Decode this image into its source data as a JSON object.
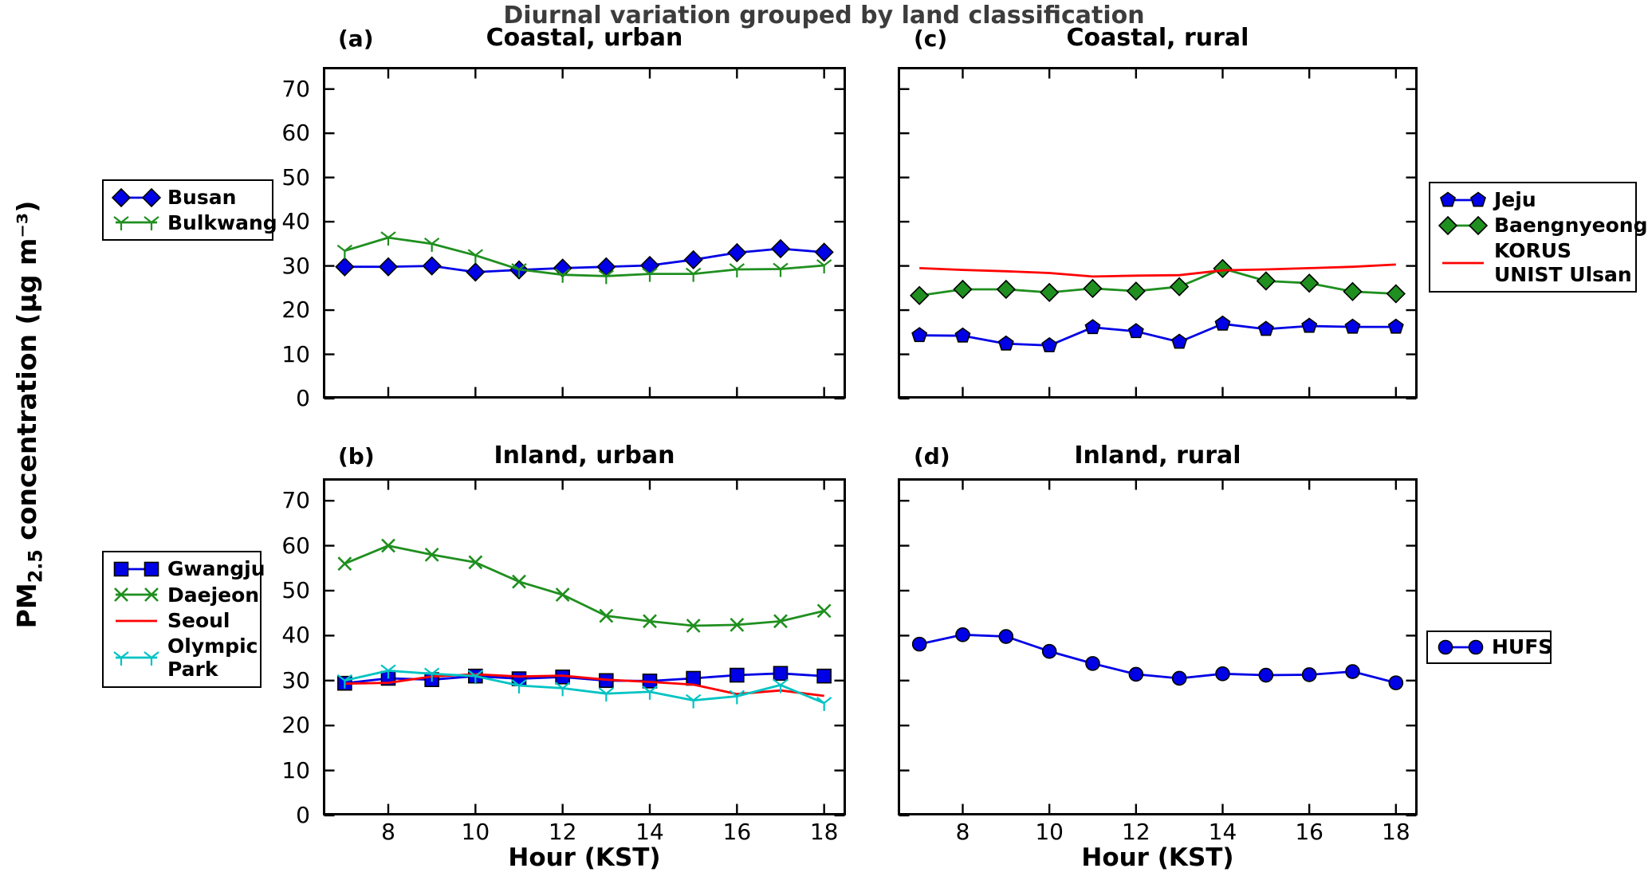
{
  "suptitle": "Diurnal variation grouped by land classification",
  "xlabel": "Hour (KST)",
  "ylabel": {
    "pm": "PM",
    "sub": "2.5",
    "rest": " concentration (µg m⁻³)"
  },
  "colors": {
    "blue": "#0000e6",
    "green": "#1f8f1f",
    "red": "#ff0000",
    "cyan": "#00c3c3",
    "frame": "#000000",
    "suptitle_text": "#3c3c3c"
  },
  "axes": {
    "xlim": [
      6.5,
      18.5
    ],
    "ylim": [
      0,
      75
    ],
    "x_ticks": [
      8,
      10,
      12,
      14,
      16,
      18
    ],
    "y_ticks": [
      0,
      10,
      20,
      30,
      40,
      50,
      60,
      70
    ],
    "hours": [
      7,
      8,
      9,
      10,
      11,
      12,
      13,
      14,
      15,
      16,
      17,
      18
    ]
  },
  "chart_data": [
    {
      "id": "a",
      "panel_label": "(a)",
      "title": "Coastal, urban",
      "type": "line",
      "show_y_tick_labels": true,
      "show_x_tick_labels": false,
      "series": [
        {
          "name": "Busan",
          "color_key": "blue",
          "marker": "diamond",
          "values": [
            29.8,
            29.8,
            30.0,
            28.6,
            29.1,
            29.5,
            29.8,
            30.1,
            31.4,
            33.0,
            33.9,
            33.1
          ]
        },
        {
          "name": "Bulkwang",
          "color_key": "green",
          "marker": "tri_down",
          "values": [
            33.4,
            36.4,
            35.0,
            32.4,
            29.2,
            28.0,
            27.7,
            28.2,
            28.2,
            29.2,
            29.3,
            30.1
          ]
        }
      ],
      "legend_items": [
        {
          "label": "Busan",
          "color_key": "blue",
          "marker": "diamond"
        },
        {
          "label": "Bulkwang",
          "color_key": "green",
          "marker": "tri_down"
        }
      ]
    },
    {
      "id": "c",
      "panel_label": "(c)",
      "title": "Coastal, rural",
      "type": "line",
      "show_y_tick_labels": false,
      "show_x_tick_labels": false,
      "series": [
        {
          "name": "Jeju",
          "color_key": "blue",
          "marker": "pentagon",
          "values": [
            14.3,
            14.2,
            12.4,
            12.0,
            16.1,
            15.2,
            12.8,
            16.9,
            15.7,
            16.4,
            16.2,
            16.2
          ]
        },
        {
          "name": "Baengnyeong",
          "color_key": "green",
          "marker": "diamond",
          "values": [
            23.3,
            24.7,
            24.7,
            24.0,
            24.9,
            24.3,
            25.3,
            29.4,
            26.6,
            26.1,
            24.2,
            23.7
          ]
        },
        {
          "name": "KORUS UNIST Ulsan",
          "color_key": "red",
          "marker": "none",
          "values": [
            29.5,
            29.1,
            28.8,
            28.4,
            27.6,
            27.8,
            27.9,
            29.0,
            29.2,
            29.5,
            29.8,
            30.3
          ]
        }
      ],
      "legend_items": [
        {
          "label": "Jeju",
          "color_key": "blue",
          "marker": "pentagon"
        },
        {
          "label": "Baengnyeong",
          "color_key": "green",
          "marker": "diamond"
        },
        {
          "label": "KORUS\nUNIST Ulsan",
          "color_key": "red",
          "marker": "none"
        }
      ]
    },
    {
      "id": "b",
      "panel_label": "(b)",
      "title": "Inland, urban",
      "type": "line",
      "show_y_tick_labels": true,
      "show_x_tick_labels": true,
      "series": [
        {
          "name": "Gwangju",
          "color_key": "blue",
          "marker": "square",
          "values": [
            29.4,
            30.5,
            30.2,
            31.0,
            30.4,
            30.8,
            30.0,
            29.9,
            30.5,
            31.2,
            31.6,
            31.0
          ]
        },
        {
          "name": "Daejeon",
          "color_key": "green",
          "marker": "x",
          "values": [
            56.0,
            60.0,
            58.0,
            56.3,
            52.0,
            49.1,
            44.4,
            43.2,
            42.2,
            42.4,
            43.2,
            45.5
          ]
        },
        {
          "name": "Seoul",
          "color_key": "red",
          "marker": "none",
          "values": [
            29.3,
            29.5,
            30.9,
            31.4,
            30.9,
            31.1,
            30.2,
            29.7,
            29.1,
            27.0,
            27.8,
            26.6
          ]
        },
        {
          "name": "Olympic Park",
          "color_key": "cyan",
          "marker": "tri_down",
          "values": [
            30.0,
            32.2,
            31.5,
            31.0,
            28.9,
            28.3,
            27.1,
            27.5,
            25.6,
            26.5,
            29.0,
            25.0
          ]
        }
      ],
      "legend_items": [
        {
          "label": "Gwangju",
          "color_key": "blue",
          "marker": "square"
        },
        {
          "label": "Daejeon",
          "color_key": "green",
          "marker": "x"
        },
        {
          "label": "Seoul",
          "color_key": "red",
          "marker": "none"
        },
        {
          "label": "Olympic\nPark",
          "color_key": "cyan",
          "marker": "tri_down"
        }
      ]
    },
    {
      "id": "d",
      "panel_label": "(d)",
      "title": "Inland, rural",
      "type": "line",
      "show_y_tick_labels": false,
      "show_x_tick_labels": true,
      "series": [
        {
          "name": "HUFS",
          "color_key": "blue",
          "marker": "circle",
          "values": [
            38.1,
            40.2,
            39.8,
            36.5,
            33.8,
            31.4,
            30.5,
            31.5,
            31.2,
            31.3,
            32.0,
            29.5
          ]
        }
      ],
      "legend_items": [
        {
          "label": "HUFS",
          "color_key": "blue",
          "marker": "circle"
        }
      ]
    }
  ]
}
